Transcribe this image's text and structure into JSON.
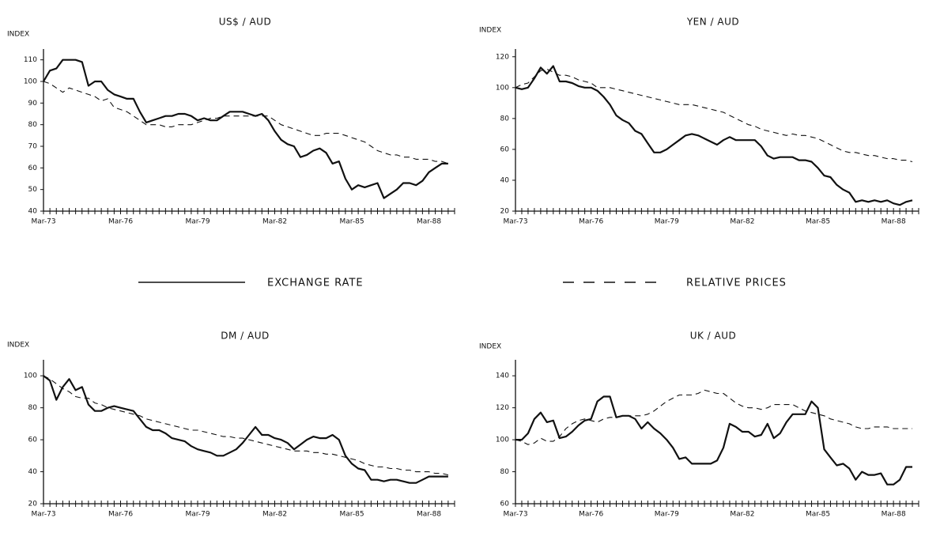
{
  "categories": [
    "Mar-73",
    null,
    null,
    null,
    null,
    null,
    null,
    null,
    null,
    null,
    null,
    null,
    "Mar-76",
    null,
    null,
    null,
    null,
    null,
    null,
    null,
    null,
    null,
    null,
    null,
    "Mar-79",
    null,
    null,
    null,
    null,
    null,
    null,
    null,
    null,
    null,
    null,
    null,
    "Mar-82",
    null,
    null,
    null,
    null,
    null,
    null,
    null,
    null,
    null,
    null,
    null,
    "Mar-85",
    null,
    null,
    null,
    null,
    null,
    null,
    null,
    null,
    null,
    null,
    null,
    "Mar-88",
    null,
    null,
    null
  ],
  "legend": [
    {
      "name": "EXCHANGE RATE",
      "style": "solid"
    },
    {
      "name": "RELATIVE PRICES",
      "style": "dashed"
    }
  ],
  "chart_data": [
    {
      "type": "line",
      "title": "US$ / AUD",
      "y_label": "INDEX",
      "ylim": [
        40,
        115
      ],
      "yticks": [
        40,
        50,
        60,
        70,
        80,
        90,
        100,
        110
      ],
      "series": [
        {
          "style": "solid",
          "color": "#111111",
          "values": [
            100,
            105,
            106,
            110,
            110,
            110,
            109,
            98,
            100,
            100,
            96,
            94,
            93,
            92,
            92,
            86,
            81,
            82,
            83,
            84,
            84,
            85,
            85,
            84,
            82,
            83,
            82,
            82,
            84,
            86,
            86,
            86,
            85,
            84,
            85,
            82,
            77,
            73,
            71,
            70,
            65,
            66,
            68,
            69,
            67,
            62,
            63,
            55,
            50,
            52,
            51,
            52,
            53,
            46,
            48,
            50,
            53,
            53,
            52,
            54,
            58,
            60,
            62,
            62
          ]
        },
        {
          "style": "dashed",
          "color": "#111111",
          "values": [
            100,
            99,
            97,
            95,
            97,
            96,
            95,
            94,
            93,
            91,
            92,
            88,
            87,
            86,
            84,
            82,
            80,
            80,
            80,
            79,
            79,
            80,
            80,
            80,
            81,
            82,
            83,
            83,
            84,
            84,
            84,
            84,
            84,
            84,
            84,
            84,
            82,
            80,
            79,
            78,
            77,
            76,
            75,
            75,
            76,
            76,
            76,
            75,
            74,
            73,
            72,
            70,
            68,
            67,
            66,
            66,
            65,
            65,
            64,
            64,
            64,
            63,
            63,
            62
          ]
        }
      ]
    },
    {
      "type": "line",
      "title": "YEN / AUD",
      "y_label": "INDEX",
      "ylim": [
        20,
        125
      ],
      "yticks": [
        20,
        40,
        60,
        80,
        100,
        120
      ],
      "series": [
        {
          "style": "solid",
          "color": "#111111",
          "values": [
            100,
            99,
            100,
            106,
            113,
            109,
            114,
            104,
            104,
            103,
            101,
            100,
            100,
            98,
            94,
            89,
            82,
            79,
            77,
            72,
            70,
            64,
            58,
            58,
            60,
            63,
            66,
            69,
            70,
            69,
            67,
            65,
            63,
            66,
            68,
            66,
            66,
            66,
            66,
            62,
            56,
            54,
            55,
            55,
            55,
            53,
            53,
            52,
            48,
            43,
            42,
            37,
            34,
            32,
            26,
            27,
            26,
            27,
            26,
            27,
            25,
            24,
            26,
            27
          ]
        },
        {
          "style": "dashed",
          "color": "#111111",
          "values": [
            100,
            102,
            103,
            107,
            111,
            112,
            110,
            108,
            108,
            107,
            105,
            104,
            103,
            100,
            100,
            100,
            99,
            98,
            97,
            96,
            95,
            94,
            93,
            92,
            91,
            90,
            89,
            89,
            89,
            88,
            87,
            86,
            85,
            84,
            82,
            80,
            78,
            76,
            75,
            73,
            72,
            71,
            70,
            69,
            70,
            69,
            69,
            68,
            67,
            65,
            63,
            61,
            59,
            58,
            58,
            57,
            56,
            56,
            55,
            54,
            54,
            53,
            53,
            52
          ]
        }
      ]
    },
    {
      "type": "line",
      "title": "DM / AUD",
      "y_label": "INDEX",
      "ylim": [
        20,
        110
      ],
      "yticks": [
        20,
        40,
        60,
        80,
        100
      ],
      "series": [
        {
          "style": "solid",
          "color": "#111111",
          "values": [
            100,
            97,
            85,
            93,
            98,
            91,
            93,
            82,
            78,
            78,
            80,
            81,
            80,
            79,
            78,
            73,
            68,
            66,
            66,
            64,
            61,
            60,
            59,
            56,
            54,
            53,
            52,
            50,
            50,
            52,
            54,
            58,
            63,
            68,
            63,
            63,
            61,
            60,
            58,
            54,
            57,
            60,
            62,
            61,
            61,
            63,
            60,
            50,
            45,
            42,
            41,
            35,
            35,
            34,
            35,
            35,
            34,
            33,
            33,
            35,
            37,
            37,
            37,
            37
          ]
        },
        {
          "style": "dashed",
          "color": "#111111",
          "values": [
            100,
            98,
            95,
            92,
            90,
            87,
            86,
            86,
            83,
            82,
            80,
            79,
            78,
            77,
            76,
            75,
            73,
            72,
            71,
            70,
            69,
            68,
            67,
            66,
            66,
            65,
            64,
            63,
            62,
            62,
            61,
            61,
            60,
            59,
            58,
            57,
            56,
            55,
            54,
            53,
            53,
            53,
            52,
            52,
            51,
            51,
            50,
            49,
            48,
            47,
            45,
            44,
            43,
            43,
            42,
            42,
            41,
            41,
            40,
            40,
            40,
            39,
            39,
            38
          ]
        }
      ]
    },
    {
      "type": "line",
      "title": "UK / AUD",
      "y_label": "INDEX",
      "ylim": [
        60,
        150
      ],
      "yticks": [
        60,
        80,
        100,
        120,
        140
      ],
      "series": [
        {
          "style": "solid",
          "color": "#111111",
          "values": [
            100,
            100,
            104,
            113,
            117,
            111,
            112,
            101,
            102,
            105,
            109,
            112,
            113,
            124,
            127,
            127,
            114,
            115,
            115,
            113,
            107,
            111,
            107,
            104,
            100,
            95,
            88,
            89,
            85,
            85,
            85,
            85,
            87,
            95,
            110,
            108,
            105,
            105,
            102,
            103,
            110,
            101,
            104,
            111,
            116,
            116,
            116,
            124,
            120,
            94,
            89,
            84,
            85,
            82,
            75,
            80,
            78,
            78,
            79,
            72,
            72,
            75,
            83,
            83
          ]
        },
        {
          "style": "dashed",
          "color": "#111111",
          "values": [
            100,
            99,
            97,
            98,
            101,
            99,
            99,
            102,
            107,
            110,
            112,
            113,
            112,
            111,
            113,
            114,
            114,
            115,
            115,
            115,
            115,
            116,
            118,
            121,
            124,
            126,
            128,
            128,
            128,
            129,
            131,
            130,
            129,
            129,
            126,
            123,
            121,
            120,
            120,
            119,
            120,
            122,
            122,
            122,
            122,
            120,
            118,
            117,
            116,
            115,
            113,
            112,
            111,
            110,
            108,
            107,
            107,
            108,
            108,
            108,
            107,
            107,
            107,
            107
          ]
        }
      ]
    }
  ]
}
